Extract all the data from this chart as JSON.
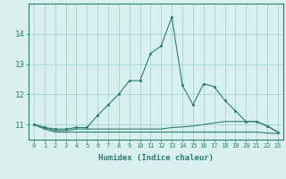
{
  "xlabel": "Humidex (Indice chaleur)",
  "x_values": [
    0,
    1,
    2,
    3,
    4,
    5,
    6,
    7,
    8,
    9,
    10,
    11,
    12,
    13,
    14,
    15,
    16,
    17,
    18,
    19,
    20,
    21,
    22,
    23
  ],
  "line1_y": [
    11.0,
    10.9,
    10.85,
    10.85,
    10.9,
    10.9,
    11.3,
    11.65,
    12.0,
    12.45,
    12.45,
    13.35,
    13.6,
    14.55,
    12.3,
    11.65,
    12.35,
    12.25,
    11.8,
    11.45,
    11.1,
    11.1,
    10.95,
    10.75
  ],
  "line2_y": [
    11.0,
    10.9,
    10.8,
    10.8,
    10.85,
    10.85,
    10.85,
    10.85,
    10.85,
    10.85,
    10.85,
    10.85,
    10.85,
    10.9,
    10.92,
    10.95,
    11.0,
    11.05,
    11.1,
    11.1,
    11.1,
    11.1,
    10.95,
    10.75
  ],
  "line3_y": [
    11.0,
    10.85,
    10.75,
    10.75,
    10.75,
    10.75,
    10.75,
    10.75,
    10.75,
    10.75,
    10.75,
    10.75,
    10.75,
    10.75,
    10.75,
    10.75,
    10.75,
    10.75,
    10.75,
    10.75,
    10.75,
    10.75,
    10.72,
    10.7
  ],
  "line_color": "#2d7d6e",
  "bg_color": "#d8f0f0",
  "grid_color": "#b0d8d8",
  "ylim": [
    10.5,
    15.0
  ],
  "yticks": [
    11,
    12,
    13,
    14
  ],
  "xlim": [
    -0.5,
    23.5
  ]
}
